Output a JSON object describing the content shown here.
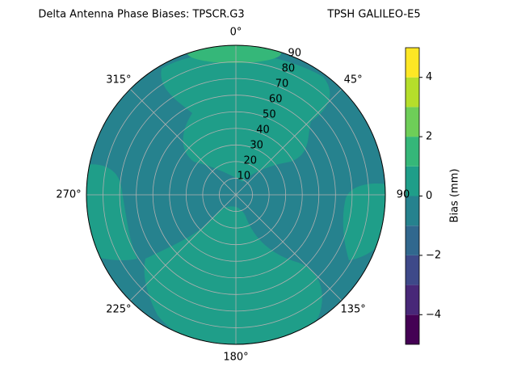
{
  "chart_data": {
    "type": "polar_contour",
    "title": "Delta Antenna Phase Biases: TPSCR.G3",
    "subtitle": "TPSH GALILEO-E5",
    "rlim": [
      0,
      90
    ],
    "rticks": [
      10,
      20,
      30,
      40,
      50,
      60,
      70,
      80,
      90
    ],
    "thetaticks": [
      {
        "value": 0,
        "label": "0°"
      },
      {
        "value": 45,
        "label": "45°"
      },
      {
        "value": 90,
        "label": "90"
      },
      {
        "value": 135,
        "label": "135°"
      },
      {
        "value": 180,
        "label": "180°"
      },
      {
        "value": 225,
        "label": "225°"
      },
      {
        "value": 270,
        "label": "270°"
      },
      {
        "value": 315,
        "label": "315°"
      }
    ],
    "grid": true,
    "colorbar": {
      "label": "Bias (mm)",
      "levels": [
        -5,
        -4,
        -3,
        -2,
        -1,
        0,
        1,
        2,
        3,
        4,
        5
      ],
      "colors": [
        "#440154",
        "#482878",
        "#3e4989",
        "#31688e",
        "#26828e",
        "#1f9e89",
        "#35b779",
        "#6ece58",
        "#b5de2b",
        "#fde725"
      ],
      "ticks": [
        {
          "value": -4,
          "label": "−4"
        },
        {
          "value": -2,
          "label": "−2"
        },
        0,
        2,
        4
      ]
    }
  }
}
